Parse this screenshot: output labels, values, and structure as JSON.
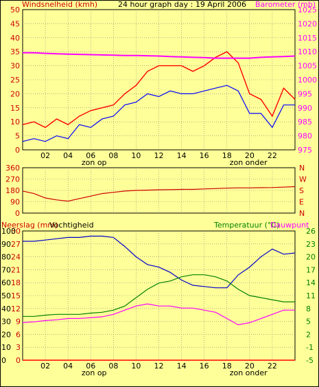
{
  "title": "24 hour graph day : 19 April 2006",
  "x_ticks": [
    "02",
    "04",
    "06",
    "08",
    "10",
    "12",
    "14",
    "16",
    "18",
    "20",
    "22"
  ],
  "sunrise_label": "zon op",
  "sunset_label": "zon onder",
  "colors": {
    "background": "#FFFF99",
    "border": "#000000",
    "grid": "#7F7F7F",
    "wind": "#FF0000",
    "wind_avg": "#0000FF",
    "barometer": "#FF00FF",
    "direction": "#CC0000",
    "humidity": "#0000CC",
    "temperature": "#008000",
    "dewpoint": "#FF00FF",
    "rain": "#FF0000"
  },
  "chart_data": [
    {
      "type": "line",
      "name": "wind-barometer",
      "left_axis_label": "Windsnelheid (kmh)",
      "right_axis_label": "Barometer (mb)",
      "left_ticks": [
        "50",
        "45",
        "40",
        "35",
        "30",
        "25",
        "20",
        "15",
        "10",
        "5",
        "0"
      ],
      "right_ticks": [
        "1025",
        "1020",
        "1015",
        "1010",
        "1005",
        "1000",
        "995",
        "990",
        "985",
        "980",
        "975"
      ],
      "ylim_left": [
        0,
        50
      ],
      "ylim_right": [
        975,
        1027
      ],
      "grid": true,
      "x_hours": [
        0,
        1,
        2,
        3,
        4,
        5,
        6,
        7,
        8,
        9,
        10,
        11,
        12,
        13,
        14,
        15,
        16,
        17,
        18,
        19,
        20,
        21,
        22,
        23,
        24
      ],
      "series": [
        {
          "name": "gust",
          "values": [
            9,
            10,
            8,
            11,
            9,
            12,
            14,
            15,
            16,
            20,
            23,
            28,
            30,
            30,
            30,
            28,
            30,
            33,
            35,
            31,
            20,
            18,
            12,
            22,
            18
          ]
        },
        {
          "name": "average",
          "values": [
            3,
            4,
            3,
            5,
            4,
            9,
            8,
            11,
            12,
            16,
            17,
            20,
            19,
            21,
            20,
            20,
            21,
            22,
            23,
            21,
            13,
            13,
            8,
            16,
            16
          ]
        },
        {
          "name": "barometer",
          "axis": "right",
          "values": [
            1011,
            1011,
            1010.8,
            1010.6,
            1010.5,
            1010.4,
            1010.3,
            1010.2,
            1010.1,
            1010,
            1010,
            1009.9,
            1009.8,
            1009.6,
            1009.5,
            1009.3,
            1009.2,
            1009,
            1009,
            1009,
            1009,
            1009.3,
            1009.5,
            1009.6,
            1009.8
          ]
        }
      ]
    },
    {
      "type": "line",
      "name": "wind-direction",
      "left_ticks": [
        "360",
        "270",
        "180",
        "90",
        "0"
      ],
      "right_ticks": [
        "N",
        "W",
        "S",
        "E",
        "N"
      ],
      "ylim": [
        0,
        360
      ],
      "grid": true,
      "x_hours": [
        0,
        1,
        2,
        3,
        4,
        5,
        6,
        7,
        8,
        9,
        10,
        11,
        12,
        13,
        14,
        15,
        16,
        17,
        18,
        19,
        20,
        21,
        22,
        23,
        24
      ],
      "values": [
        175,
        155,
        120,
        105,
        95,
        115,
        135,
        155,
        165,
        175,
        180,
        182,
        185,
        186,
        188,
        188,
        192,
        195,
        198,
        200,
        200,
        202,
        203,
        206,
        210
      ]
    },
    {
      "type": "line",
      "name": "humidity-temperature",
      "left_axis_label": "Neerslag (mm)",
      "left_axis_label2": "Vochtigheid",
      "right_axis_label": "Temperatuur (°C)",
      "right_axis_label2": "Dauwpunt",
      "rain_ticks": [
        "30",
        "27",
        "24",
        "21",
        "18",
        "15",
        "12",
        "9",
        "6",
        "3",
        "0"
      ],
      "humidity_ticks": [
        "100",
        "90",
        "80",
        "70",
        "60",
        "50",
        "40",
        "30",
        "20",
        "10",
        "0"
      ],
      "right_ticks": [
        "26",
        "23",
        "20",
        "17",
        "14",
        "11",
        "8",
        "5",
        "2",
        "-1",
        "-5"
      ],
      "ylim_humidity": [
        0,
        100
      ],
      "ylim_temperature": [
        -5,
        26
      ],
      "grid": true,
      "x_hours": [
        0,
        1,
        2,
        3,
        4,
        5,
        6,
        7,
        8,
        9,
        10,
        11,
        12,
        13,
        14,
        15,
        16,
        17,
        18,
        19,
        20,
        21,
        22,
        23,
        24
      ],
      "series": [
        {
          "name": "humidity",
          "values": [
            92,
            92,
            93,
            94,
            95,
            95,
            96,
            96,
            95,
            88,
            80,
            74,
            72,
            68,
            62,
            58,
            57,
            56,
            56,
            66,
            72,
            80,
            86,
            82,
            83
          ]
        },
        {
          "name": "temperature",
          "values": [
            5.5,
            5.5,
            5.8,
            6,
            6,
            6,
            6.3,
            6.5,
            7,
            8,
            10,
            12,
            13.5,
            14,
            15,
            15.5,
            15.5,
            15,
            14,
            12,
            10.5,
            10,
            9.5,
            9,
            9
          ]
        },
        {
          "name": "dewpoint",
          "values": [
            4,
            4.2,
            4.5,
            4.7,
            5,
            5,
            5.2,
            5.4,
            6,
            7,
            8,
            8.5,
            8,
            8,
            7.5,
            7.5,
            7,
            6.5,
            5,
            3.5,
            4,
            5,
            6,
            7,
            7
          ]
        },
        {
          "name": "rain",
          "values": [
            0,
            0,
            0,
            0,
            0,
            0,
            0,
            0,
            0,
            0,
            0,
            0,
            0,
            0,
            0,
            0,
            0,
            0,
            0,
            0,
            0,
            0,
            0,
            0,
            0
          ]
        }
      ]
    }
  ]
}
